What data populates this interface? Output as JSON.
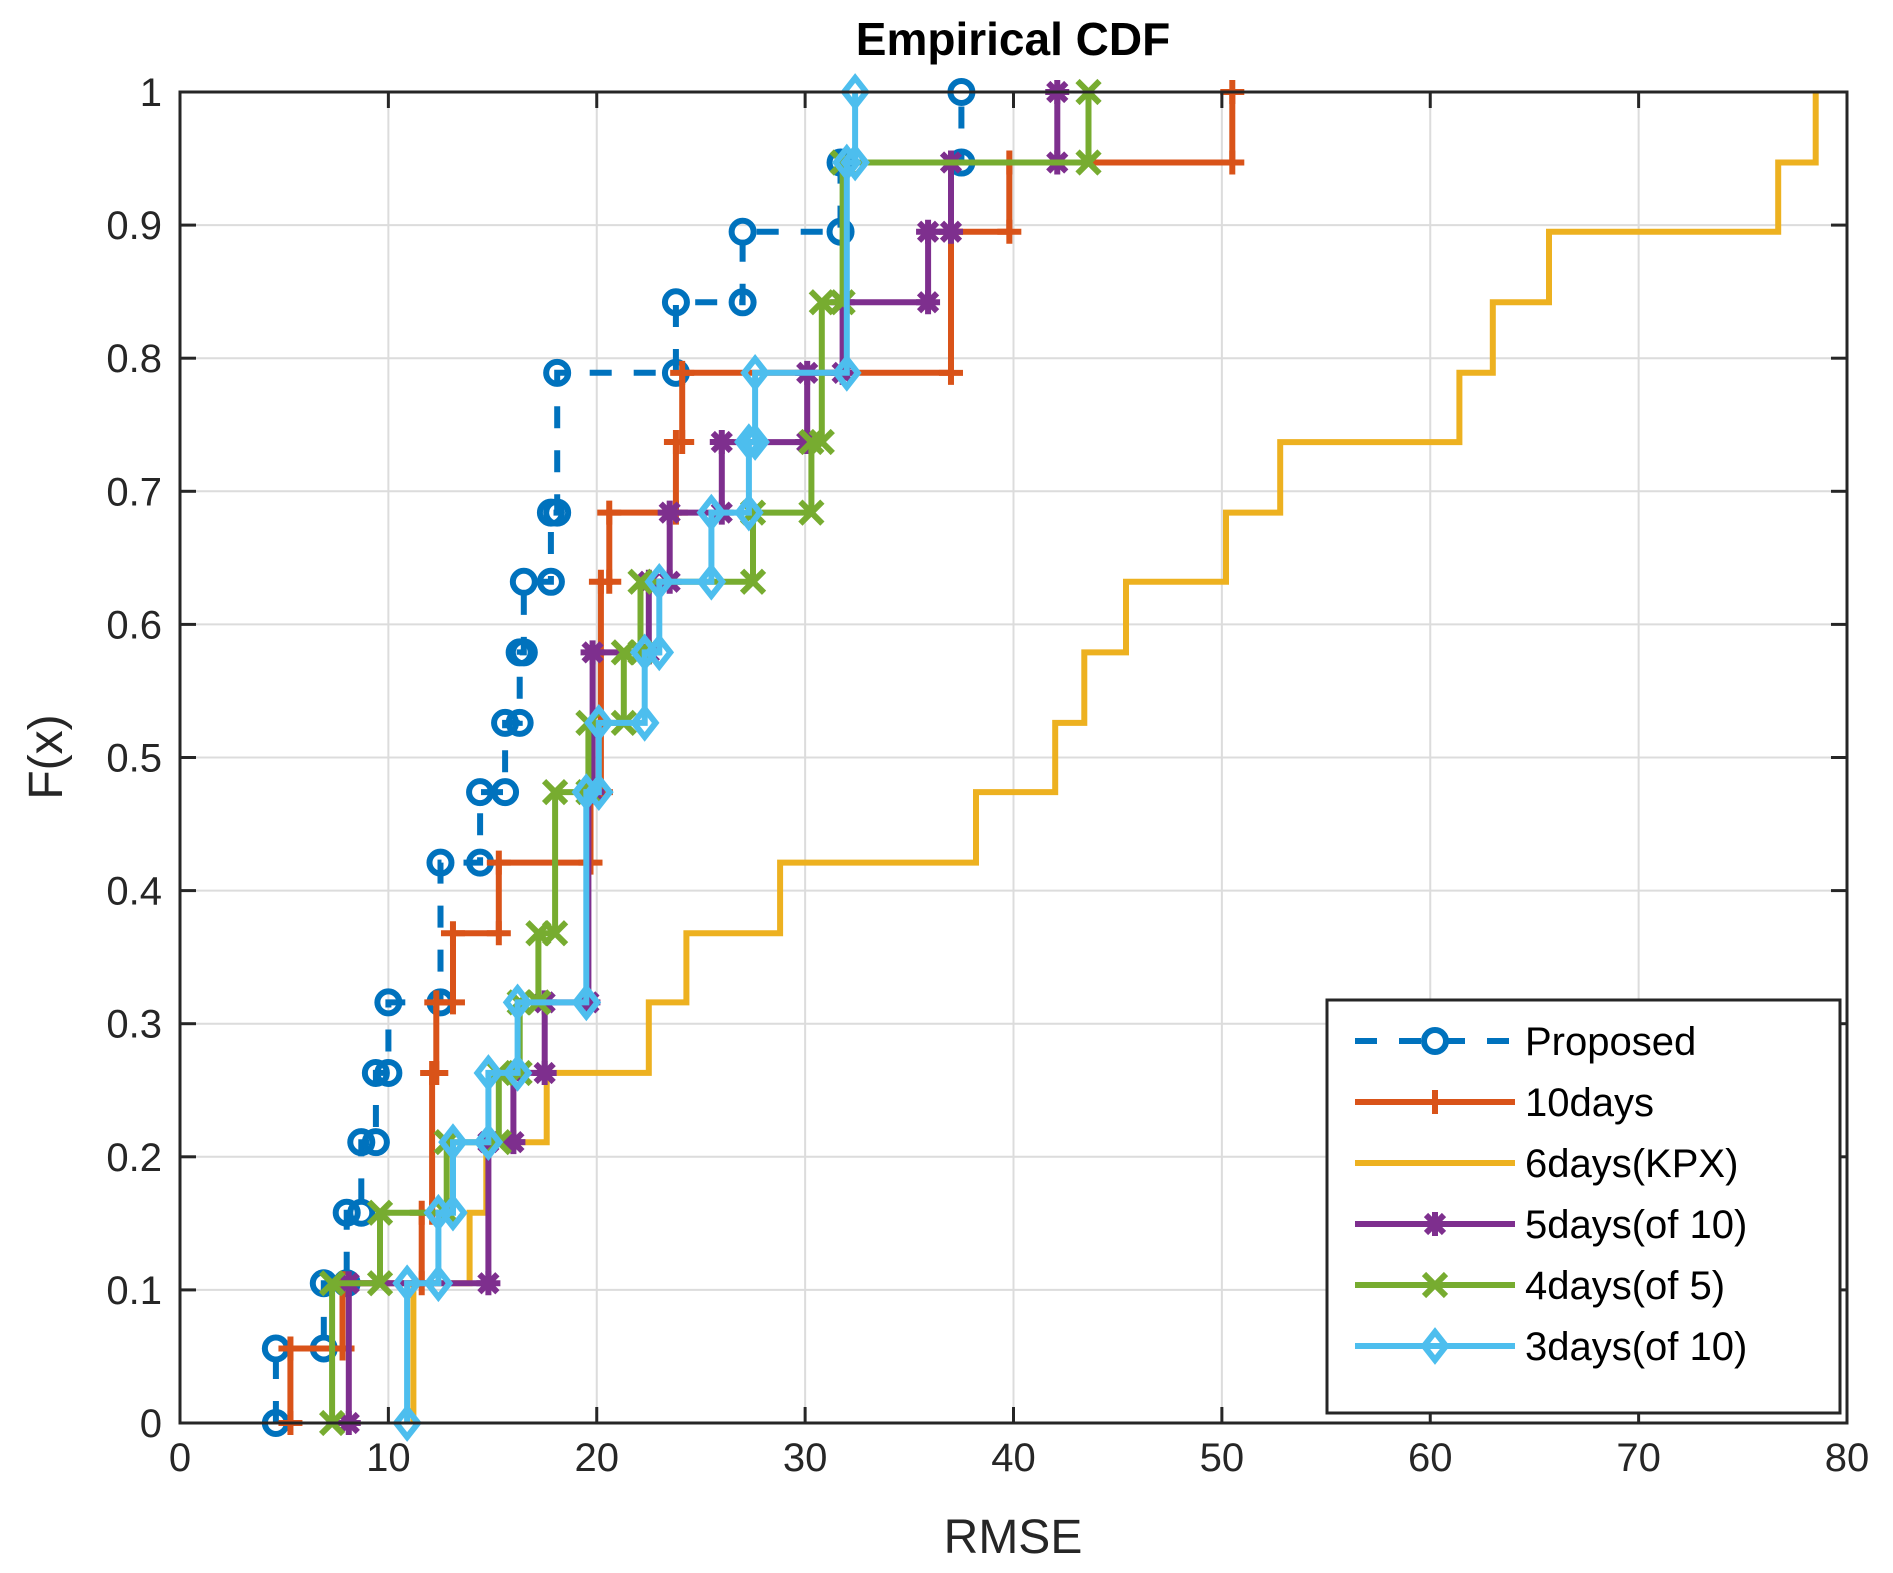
{
  "chart_data": {
    "type": "line",
    "subtype": "empirical-cdf-stairs",
    "title": "Empirical CDF",
    "xlabel": "RMSE",
    "ylabel": "F(x)",
    "xlim": [
      0,
      80
    ],
    "ylim": [
      0,
      1
    ],
    "xticks": [
      "0",
      "10",
      "20",
      "30",
      "40",
      "50",
      "60",
      "70",
      "80"
    ],
    "yticks": [
      "0",
      "0.1",
      "0.2",
      "0.3",
      "0.4",
      "0.5",
      "0.6",
      "0.7",
      "0.8",
      "0.9",
      "1"
    ],
    "grid": true,
    "legend_position": "bottom-right",
    "series": [
      {
        "name": "Proposed",
        "color": "#0072BD",
        "line_style": "dashed",
        "marker": "circle",
        "values": [
          4.6,
          6.9,
          8.0,
          8.7,
          9.4,
          10.0,
          12.5,
          14.4,
          15.6,
          16.3,
          16.5,
          17.8,
          18.1,
          23.8,
          27.0,
          31.7,
          37.5
        ],
        "cdf": [
          0.056,
          0.105,
          0.158,
          0.211,
          0.263,
          0.316,
          0.421,
          0.474,
          0.526,
          0.579,
          0.632,
          0.684,
          0.789,
          0.842,
          0.895,
          0.947,
          1.0
        ]
      },
      {
        "name": "10days",
        "color": "#D95319",
        "line_style": "solid",
        "marker": "plus",
        "values": [
          5.3,
          7.8,
          11.6,
          12.1,
          12.3,
          13.1,
          15.3,
          19.7,
          20.2,
          20.6,
          23.8,
          24.1,
          37.0,
          39.8,
          50.5
        ],
        "cdf": [
          0.056,
          0.105,
          0.158,
          0.263,
          0.316,
          0.368,
          0.421,
          0.474,
          0.632,
          0.684,
          0.737,
          0.789,
          0.895,
          0.947,
          1.0
        ]
      },
      {
        "name": "6days(KPX)",
        "color": "#EDB120",
        "line_style": "solid",
        "marker": "none",
        "values": [
          11.2,
          13.9,
          14.7,
          17.6,
          22.5,
          24.3,
          28.8,
          38.2,
          42.0,
          43.4,
          45.4,
          50.2,
          52.8,
          61.4,
          63.0,
          65.7,
          76.7,
          78.5
        ],
        "cdf": [
          0.105,
          0.158,
          0.211,
          0.263,
          0.316,
          0.368,
          0.421,
          0.474,
          0.526,
          0.579,
          0.632,
          0.684,
          0.737,
          0.789,
          0.842,
          0.895,
          0.947,
          1.0
        ]
      },
      {
        "name": "5days(of 10)",
        "color": "#7E2F8E",
        "line_style": "solid",
        "marker": "asterisk",
        "values": [
          8.1,
          14.8,
          16.0,
          17.5,
          19.6,
          19.8,
          22.5,
          23.5,
          26.0,
          30.1,
          31.8,
          35.9,
          37.0,
          42.1
        ],
        "cdf": [
          0.105,
          0.211,
          0.263,
          0.316,
          0.474,
          0.579,
          0.632,
          0.684,
          0.737,
          0.789,
          0.842,
          0.895,
          0.947,
          1.0
        ]
      },
      {
        "name": "4days(of 5)",
        "color": "#77AC30",
        "line_style": "solid",
        "marker": "x",
        "values": [
          7.3,
          9.6,
          12.8,
          15.3,
          16.3,
          17.2,
          18.0,
          19.6,
          21.3,
          22.1,
          27.5,
          30.3,
          30.8,
          31.8,
          43.6
        ],
        "cdf": [
          0.105,
          0.158,
          0.211,
          0.263,
          0.316,
          0.368,
          0.474,
          0.526,
          0.579,
          0.632,
          0.684,
          0.737,
          0.842,
          0.947,
          1.0
        ]
      },
      {
        "name": "3days(of 10)",
        "color": "#4DBEEE",
        "line_style": "solid",
        "marker": "diamond",
        "values": [
          10.9,
          12.4,
          13.1,
          14.8,
          16.2,
          19.5,
          20.1,
          22.3,
          23.0,
          25.5,
          27.3,
          27.6,
          32.0,
          32.4
        ],
        "cdf": [
          0.105,
          0.158,
          0.211,
          0.263,
          0.316,
          0.474,
          0.526,
          0.579,
          0.632,
          0.684,
          0.737,
          0.789,
          0.947,
          1.0
        ]
      }
    ]
  }
}
